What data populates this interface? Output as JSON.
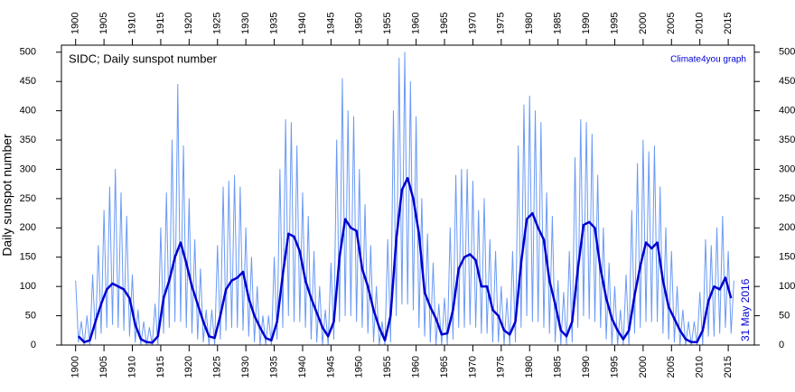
{
  "chart_data": {
    "type": "line",
    "title": "SIDC; Daily sunspot number",
    "credit": "Climate4you graph",
    "date_note": "31 May 2016",
    "y_label": "Daily sunspot number",
    "xlim": [
      1897.5,
      2019.6
    ],
    "ylim": [
      0,
      512
    ],
    "xticks": [
      1900,
      1905,
      1910,
      1915,
      1920,
      1925,
      1930,
      1935,
      1940,
      1945,
      1950,
      1955,
      1960,
      1965,
      1970,
      1975,
      1980,
      1985,
      1990,
      1995,
      2000,
      2005,
      2010,
      2015
    ],
    "yticks": [
      0,
      50,
      100,
      150,
      200,
      250,
      300,
      350,
      400,
      450,
      500
    ],
    "grid": false,
    "series": [
      {
        "color": "#6a9af5",
        "width": 1,
        "x": [
          1900,
          1900.5,
          1901,
          1901.5,
          1902,
          1902.5,
          1903,
          1903.5,
          1904,
          1904.5,
          1905,
          1905.5,
          1906,
          1906.5,
          1907,
          1907.5,
          1908,
          1908.5,
          1909,
          1909.5,
          1910,
          1910.5,
          1911,
          1911.5,
          1912,
          1912.5,
          1913,
          1913.5,
          1914,
          1914.5,
          1915,
          1915.5,
          1916,
          1916.5,
          1917,
          1917.5,
          1918,
          1918.5,
          1919,
          1919.5,
          1920,
          1920.5,
          1921,
          1921.5,
          1922,
          1922.5,
          1923,
          1923.5,
          1924,
          1924.5,
          1925,
          1925.5,
          1926,
          1926.5,
          1927,
          1927.5,
          1928,
          1928.5,
          1929,
          1929.5,
          1930,
          1930.5,
          1931,
          1931.5,
          1932,
          1932.5,
          1933,
          1933.5,
          1934,
          1934.5,
          1935,
          1935.5,
          1936,
          1936.5,
          1937,
          1937.5,
          1938,
          1938.5,
          1939,
          1939.5,
          1940,
          1940.5,
          1941,
          1941.5,
          1942,
          1942.5,
          1943,
          1943.5,
          1944,
          1944.5,
          1945,
          1945.5,
          1946,
          1946.5,
          1947,
          1947.5,
          1948,
          1948.5,
          1949,
          1949.5,
          1950,
          1950.5,
          1951,
          1951.5,
          1952,
          1952.5,
          1953,
          1953.5,
          1954,
          1954.5,
          1955,
          1955.5,
          1956,
          1956.5,
          1957,
          1957.5,
          1958,
          1958.5,
          1959,
          1959.5,
          1960,
          1960.5,
          1961,
          1961.5,
          1962,
          1962.5,
          1963,
          1963.5,
          1964,
          1964.5,
          1965,
          1965.5,
          1966,
          1966.5,
          1967,
          1967.5,
          1968,
          1968.5,
          1969,
          1969.5,
          1970,
          1970.5,
          1971,
          1971.5,
          1972,
          1972.5,
          1973,
          1973.5,
          1974,
          1974.5,
          1975,
          1975.5,
          1976,
          1976.5,
          1977,
          1977.5,
          1978,
          1978.5,
          1979,
          1979.5,
          1980,
          1980.5,
          1981,
          1981.5,
          1982,
          1982.5,
          1983,
          1983.5,
          1984,
          1984.5,
          1985,
          1985.5,
          1986,
          1986.5,
          1987,
          1987.5,
          1988,
          1988.5,
          1989,
          1989.5,
          1990,
          1990.5,
          1991,
          1991.5,
          1992,
          1992.5,
          1993,
          1993.5,
          1994,
          1994.5,
          1995,
          1995.5,
          1996,
          1996.5,
          1997,
          1997.5,
          1998,
          1998.5,
          1999,
          1999.5,
          2000,
          2000.5,
          2001,
          2001.5,
          2002,
          2002.5,
          2003,
          2003.5,
          2004,
          2004.5,
          2005,
          2005.5,
          2006,
          2006.5,
          2007,
          2007.5,
          2008,
          2008.5,
          2009,
          2009.5,
          2010,
          2010.5,
          2011,
          2011.5,
          2012,
          2012.5,
          2013,
          2013.5,
          2014,
          2014.5,
          2015,
          2015.5,
          2016
        ],
        "values": [
          110,
          5,
          40,
          0,
          50,
          0,
          120,
          10,
          170,
          20,
          230,
          30,
          270,
          35,
          300,
          30,
          260,
          25,
          220,
          15,
          120,
          5,
          60,
          0,
          40,
          0,
          30,
          0,
          70,
          0,
          200,
          20,
          260,
          30,
          350,
          40,
          445,
          40,
          340,
          30,
          250,
          20,
          180,
          10,
          130,
          5,
          60,
          0,
          60,
          0,
          170,
          10,
          270,
          25,
          280,
          30,
          290,
          30,
          270,
          25,
          200,
          15,
          150,
          5,
          100,
          0,
          50,
          0,
          50,
          0,
          150,
          10,
          300,
          30,
          385,
          50,
          380,
          40,
          340,
          40,
          260,
          30,
          220,
          10,
          160,
          5,
          100,
          0,
          60,
          0,
          140,
          10,
          350,
          40,
          455,
          50,
          400,
          50,
          390,
          40,
          300,
          30,
          240,
          20,
          170,
          5,
          100,
          0,
          40,
          0,
          180,
          5,
          400,
          50,
          490,
          70,
          500,
          70,
          450,
          60,
          390,
          30,
          250,
          15,
          190,
          5,
          140,
          0,
          70,
          0,
          80,
          0,
          200,
          10,
          290,
          30,
          300,
          30,
          300,
          35,
          280,
          30,
          230,
          20,
          250,
          20,
          180,
          5,
          160,
          5,
          100,
          0,
          80,
          0,
          160,
          5,
          340,
          30,
          410,
          50,
          425,
          40,
          400,
          40,
          380,
          30,
          260,
          20,
          220,
          5,
          110,
          0,
          90,
          0,
          160,
          5,
          320,
          30,
          385,
          50,
          380,
          45,
          360,
          40,
          290,
          30,
          200,
          10,
          140,
          0,
          100,
          0,
          60,
          0,
          120,
          0,
          230,
          20,
          310,
          30,
          350,
          40,
          330,
          40,
          340,
          40,
          270,
          20,
          200,
          10,
          160,
          5,
          100,
          0,
          60,
          0,
          40,
          0,
          40,
          0,
          90,
          0,
          180,
          15,
          170,
          15,
          200,
          20,
          220,
          30,
          160,
          20,
          110
        ]
      },
      {
        "color": "#0000d0",
        "width": 2.5,
        "x": [
          1900.5,
          1901.5,
          1902.5,
          1903.5,
          1904.5,
          1905.5,
          1906.5,
          1907.5,
          1908.5,
          1909.5,
          1910.5,
          1911.5,
          1912.5,
          1913.5,
          1914.5,
          1915.5,
          1916.5,
          1917.5,
          1918.5,
          1919.5,
          1920.5,
          1921.5,
          1922.5,
          1923.5,
          1924.5,
          1925.5,
          1926.5,
          1927.5,
          1928.5,
          1929.5,
          1930.5,
          1931.5,
          1932.5,
          1933.5,
          1934.5,
          1935.5,
          1936.5,
          1937.5,
          1938.5,
          1939.5,
          1940.5,
          1941.5,
          1942.5,
          1943.5,
          1944.5,
          1945.5,
          1946.5,
          1947.5,
          1948.5,
          1949.5,
          1950.5,
          1951.5,
          1952.5,
          1953.5,
          1954.5,
          1955.5,
          1956.5,
          1957.5,
          1958.5,
          1959.5,
          1960.5,
          1961.5,
          1962.5,
          1963.5,
          1964.5,
          1965.5,
          1966.5,
          1967.5,
          1968.5,
          1969.5,
          1970.5,
          1971.5,
          1972.5,
          1973.5,
          1974.5,
          1975.5,
          1976.5,
          1977.5,
          1978.5,
          1979.5,
          1980.5,
          1981.5,
          1982.5,
          1983.5,
          1984.5,
          1985.5,
          1986.5,
          1987.5,
          1988.5,
          1989.5,
          1990.5,
          1991.5,
          1992.5,
          1993.5,
          1994.5,
          1995.5,
          1996.5,
          1997.5,
          1998.5,
          1999.5,
          2000.5,
          2001.5,
          2002.5,
          2003.5,
          2004.5,
          2005.5,
          2006.5,
          2007.5,
          2008.5,
          2009.5,
          2010.5,
          2011.5,
          2012.5,
          2013.5,
          2014.5,
          2015.5
        ],
        "values": [
          15,
          5,
          8,
          40,
          70,
          95,
          105,
          100,
          95,
          80,
          35,
          10,
          5,
          4,
          15,
          80,
          110,
          150,
          175,
          140,
          100,
          70,
          40,
          15,
          12,
          50,
          95,
          110,
          115,
          125,
          80,
          50,
          30,
          12,
          8,
          40,
          120,
          190,
          185,
          160,
          110,
          80,
          55,
          30,
          15,
          40,
          150,
          215,
          200,
          195,
          130,
          100,
          60,
          30,
          8,
          50,
          180,
          265,
          285,
          250,
          190,
          90,
          65,
          45,
          18,
          20,
          60,
          130,
          150,
          155,
          145,
          100,
          100,
          60,
          50,
          25,
          18,
          40,
          140,
          215,
          225,
          200,
          180,
          110,
          70,
          25,
          15,
          40,
          130,
          205,
          210,
          200,
          130,
          80,
          45,
          25,
          10,
          25,
          85,
          135,
          175,
          165,
          175,
          110,
          65,
          45,
          25,
          10,
          5,
          5,
          25,
          75,
          100,
          95,
          115,
          80
        ]
      }
    ]
  }
}
